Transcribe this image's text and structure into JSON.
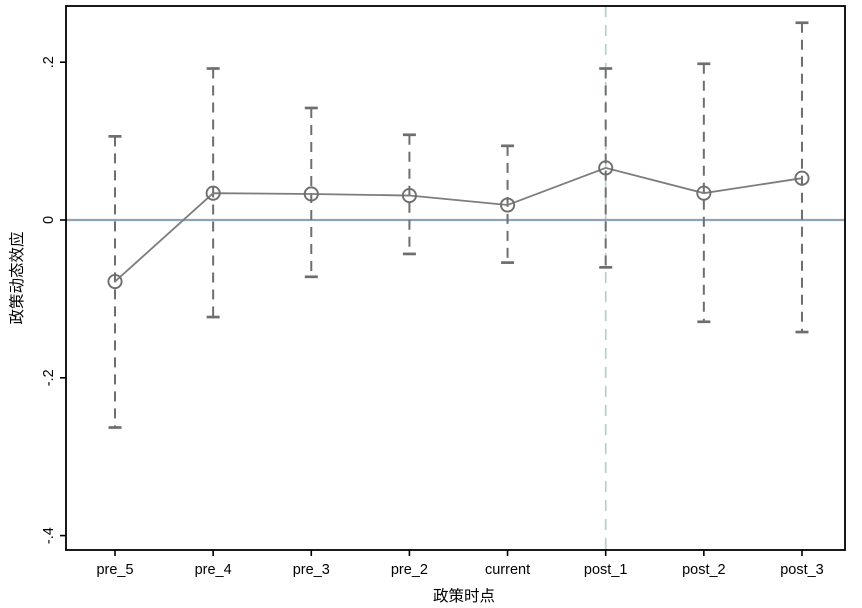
{
  "chart_data": {
    "type": "line",
    "subtype": "event-study coefficient plot with dashed confidence intervals",
    "title": "",
    "xlabel": "政策时点",
    "ylabel": "政策动态效应",
    "categories": [
      "pre_5",
      "pre_4",
      "pre_3",
      "pre_2",
      "current",
      "post_1",
      "post_2",
      "post_3"
    ],
    "series": [
      {
        "name": "coefficient",
        "values": [
          -0.078,
          0.034,
          0.033,
          0.031,
          0.019,
          0.066,
          0.034,
          0.053
        ],
        "ci_lower": [
          -0.263,
          -0.123,
          -0.072,
          -0.043,
          -0.054,
          -0.06,
          -0.129,
          -0.142
        ],
        "ci_upper": [
          0.106,
          0.192,
          0.142,
          0.108,
          0.094,
          0.192,
          0.198,
          0.25
        ]
      }
    ],
    "yticks": [
      {
        "label": ".2",
        "value": 0.2
      },
      {
        "label": "0",
        "value": 0.0
      },
      {
        "label": "-.2",
        "value": -0.2
      },
      {
        "label": "-.4",
        "value": -0.4
      }
    ],
    "ylim": [
      -0.418,
      0.271
    ],
    "grid": "off",
    "legend": "none",
    "refline_y": 0,
    "refline_x_category": "post_1",
    "colors": {
      "zero_line": "#8ba4b8",
      "treatment_refline": "#b8cfc3",
      "ci_line": "#6e6e6e",
      "coef_line": "#7d7d7d",
      "marker_stroke": "#6e6e6e",
      "axis": "#000000",
      "background": "#ffffff"
    }
  }
}
